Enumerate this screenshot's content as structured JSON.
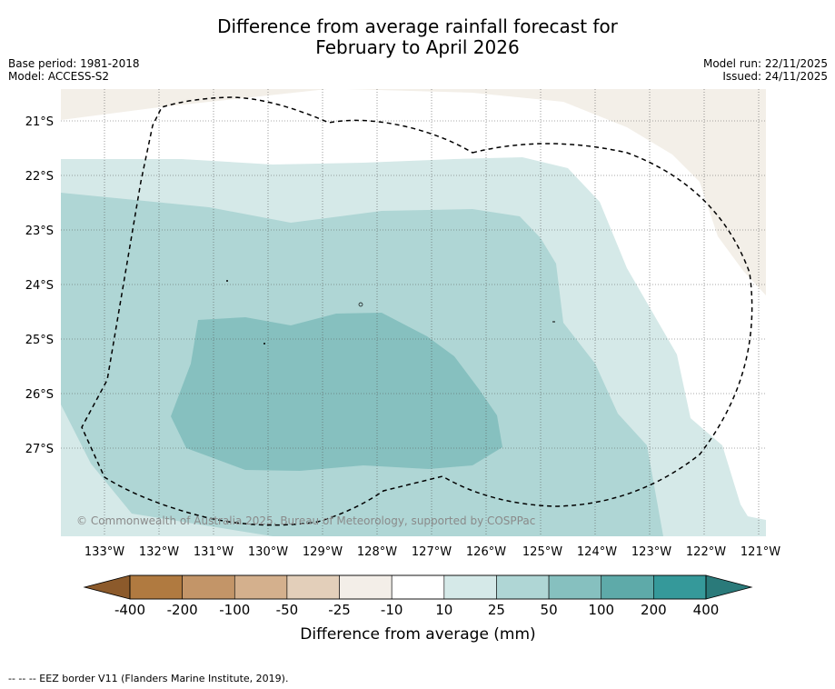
{
  "title_line1": "Difference from average rainfall forecast for",
  "title_line2": "February to April 2026",
  "base_period": "Base period: 1981-2018",
  "model": "Model: ACCESS-S2",
  "model_run": "Model run: 22/11/2025",
  "issued": "Issued: 24/11/2025",
  "lat_labels": [
    "21°S",
    "22°S",
    "23°S",
    "24°S",
    "25°S",
    "26°S",
    "27°S"
  ],
  "lon_labels": [
    "133°W",
    "132°W",
    "131°W",
    "130°W",
    "129°W",
    "128°W",
    "127°W",
    "126°W",
    "125°W",
    "124°W",
    "123°W",
    "122°W",
    "121°W"
  ],
  "copyright": "© Commonwealth of Australia 2025, Bureau of Meteorology, supported by COSPPac",
  "legend": {
    "title": "Difference from average (mm)",
    "ticks": [
      "-400",
      "-200",
      "-100",
      "-50",
      "-25",
      "-10",
      "10",
      "25",
      "50",
      "100",
      "200",
      "400"
    ],
    "bin_colors": [
      "#b07a40",
      "#c39568",
      "#d4b08d",
      "#e3cfba",
      "#f3eee8",
      "#ffffff",
      "#d5e9e8",
      "#afd6d5",
      "#86c0bf",
      "#5eaaa9",
      "#35999a"
    ],
    "low_extend_color": "#8c5a2b",
    "high_extend_color": "#2a7a7a"
  },
  "map_colors": {
    "land": "#f3efe8",
    "class_10_25": "#d5e9e8",
    "class_25_50": "#afd6d5",
    "class_50_100": "#86c0bf"
  },
  "footnote": "-- -- -- EEZ border V11 (Flanders Marine Institute, 2019)."
}
